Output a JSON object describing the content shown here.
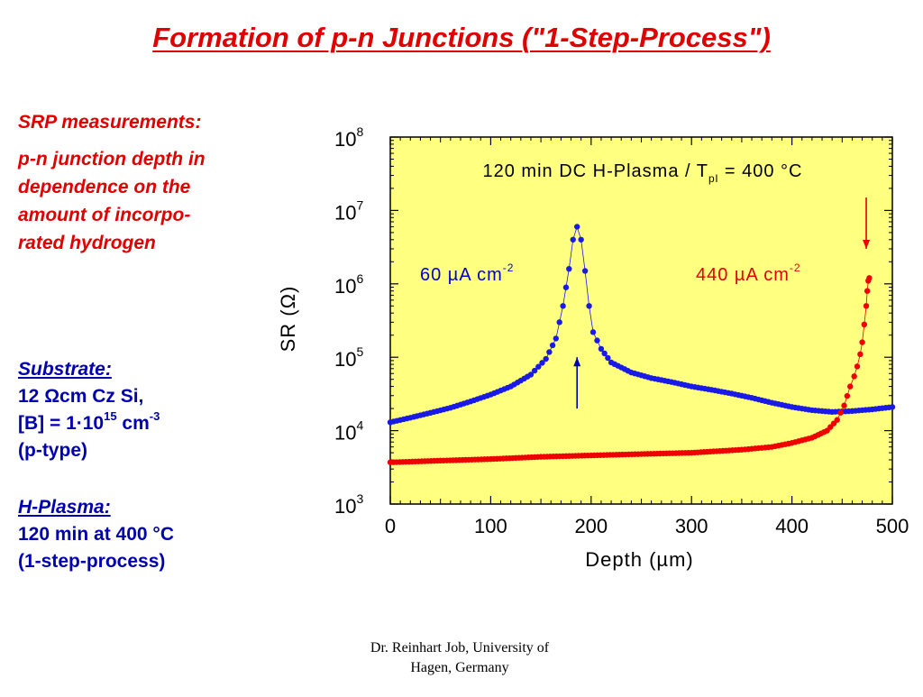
{
  "slide": {
    "title": "Formation of p-n Junctions (\"1-Step-Process\")",
    "srp_heading": "SRP measurements:",
    "srp_lines": [
      "p-n junction depth in",
      "dependence on the",
      "amount of incorpo-",
      "rated hydrogen"
    ],
    "substrate_heading": "Substrate:",
    "substrate_line1": "12 Ωcm Cz Si,",
    "substrate_line2_prefix": "[B] = 1·10",
    "substrate_line2_exp": "15",
    "substrate_line2_unit": " cm",
    "substrate_line2_unit_exp": "-3",
    "substrate_line3": "(p-type)",
    "plasma_heading": "H-Plasma:",
    "plasma_line1": "120 min at 400 °C",
    "plasma_line2": "(1-step-process)",
    "footer_line1": "Dr. Reinhart Job, University of",
    "footer_line2": "Hagen, Germany"
  },
  "colors": {
    "title_red": "#e00000",
    "text_blue": "#0000b0",
    "plot_bg": "#ffff80",
    "series_blue": "#1a1ae6",
    "series_red": "#ee0000"
  },
  "chart_data": {
    "type": "scatter",
    "title_prefix": "120 min DC H-Plasma / T",
    "title_sub": "pl",
    "title_suffix": " = 400 °C",
    "xlabel": "Depth (µm)",
    "ylabel": "SR (Ω)",
    "xlim": [
      0,
      500
    ],
    "ylim": [
      1000,
      100000000
    ],
    "yscale": "log",
    "x_ticks": [
      "0",
      "100",
      "200",
      "300",
      "400",
      "500"
    ],
    "y_tick_base": "10",
    "y_tick_exps": [
      "3",
      "4",
      "5",
      "6",
      "7",
      "8"
    ],
    "grid": false,
    "series": [
      {
        "name": "60 µA cm",
        "name_exp": "-2",
        "color": "#1a1ae6",
        "x": [
          0,
          20,
          40,
          60,
          80,
          100,
          120,
          140,
          155,
          165,
          172,
          178,
          182,
          186,
          190,
          194,
          198,
          202,
          210,
          220,
          240,
          260,
          280,
          300,
          320,
          340,
          360,
          380,
          400,
          420,
          440,
          460,
          480,
          500
        ],
        "y": [
          13000,
          15000,
          17500,
          20500,
          25000,
          31000,
          40000,
          58000,
          95000,
          180000,
          500000,
          1600000,
          4000000,
          6000000,
          4000000,
          1500000,
          500000,
          220000,
          130000,
          85000,
          62000,
          52000,
          46000,
          40000,
          36000,
          32000,
          28000,
          24000,
          21000,
          19000,
          18000,
          18500,
          19500,
          21000
        ]
      },
      {
        "name": "440 µA cm",
        "name_exp": "-2",
        "color": "#ee0000",
        "x": [
          0,
          50,
          100,
          150,
          200,
          250,
          300,
          350,
          380,
          400,
          420,
          435,
          445,
          452,
          458,
          462,
          465,
          468,
          470,
          472,
          474,
          475,
          476,
          477
        ],
        "y": [
          3700,
          3900,
          4100,
          4400,
          4600,
          4800,
          5000,
          5500,
          6000,
          6800,
          8000,
          10000,
          14000,
          22000,
          40000,
          55000,
          75000,
          110000,
          160000,
          280000,
          500000,
          800000,
          1100000,
          1200000
        ]
      }
    ],
    "annotations": [
      {
        "label": "upward arrow",
        "color": "#0000b0",
        "x": 186,
        "y_from": 20000,
        "y_to": 100000
      },
      {
        "label": "downward arrow",
        "color": "#ee0000",
        "x": 474,
        "y_from": 15000000,
        "y_to": 3000000
      }
    ]
  }
}
